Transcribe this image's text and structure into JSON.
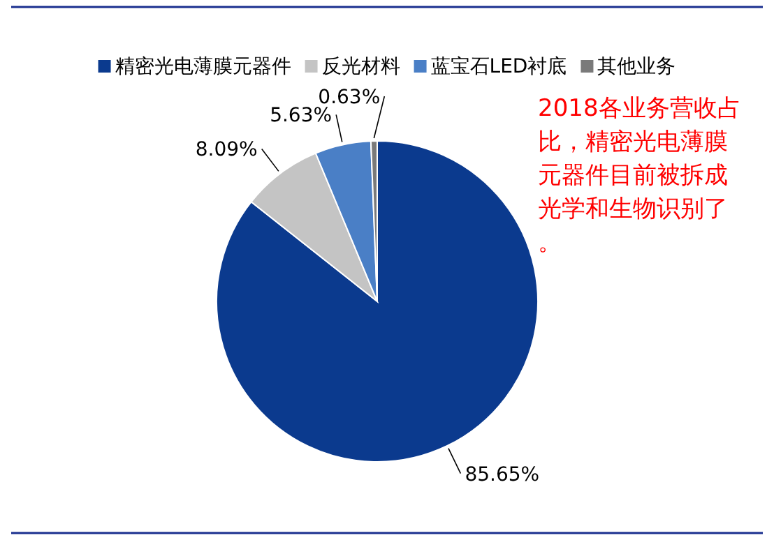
{
  "chart_data": {
    "type": "pie",
    "categories": [
      "精密光电薄膜元器件",
      "反光材料",
      "蓝宝石LED衬底",
      "其他业务"
    ],
    "values": [
      85.65,
      8.09,
      5.63,
      0.63
    ],
    "colors": [
      "#0b3a8e",
      "#c4c4c4",
      "#4a7fc6",
      "#7a7a7a"
    ],
    "value_labels": [
      "85.65%",
      "8.09%",
      "5.63%",
      "0.63%"
    ],
    "legend": "top",
    "annotations": [
      "2018各业务营收占比，精密光电薄膜元器件目前被拆成光学和生物识别了。"
    ]
  }
}
